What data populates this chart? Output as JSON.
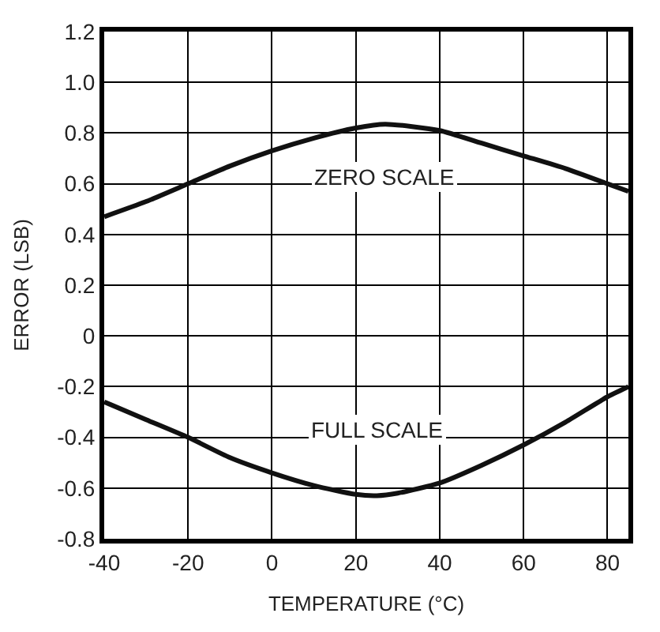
{
  "chart_data": {
    "type": "line",
    "xlabel": "TEMPERATURE (°C)",
    "ylabel": "ERROR (LSB)",
    "xlim": [
      -40,
      85
    ],
    "xticks": [
      -40,
      -20,
      0,
      20,
      40,
      60,
      80
    ],
    "ylim": [
      -0.8,
      1.2
    ],
    "yticks": [
      {
        "value": -0.8,
        "label": "-0.8"
      },
      {
        "value": -0.6,
        "label": "-0.6"
      },
      {
        "value": -0.4,
        "label": "-0.4"
      },
      {
        "value": -0.2,
        "label": "-0.2"
      },
      0,
      {
        "value": 0.2,
        "label": "0.2"
      },
      {
        "value": 0.4,
        "label": "0.4"
      },
      {
        "value": 0.6,
        "label": "0.6"
      },
      {
        "value": 0.8,
        "label": "0.8"
      },
      {
        "value": 1.0,
        "label": "1.0"
      },
      {
        "value": 1.2,
        "label": "1.2"
      }
    ],
    "grid": true,
    "marker": "none",
    "line_style": "solid",
    "series": [
      {
        "color": "#111111",
        "x": [
          -40,
          -30,
          -20,
          -10,
          0,
          10,
          20,
          27,
          40,
          50,
          60,
          70,
          80,
          85
        ],
        "values": [
          0.47,
          0.53,
          0.6,
          0.67,
          0.73,
          0.78,
          0.82,
          0.835,
          0.81,
          0.76,
          0.71,
          0.66,
          0.6,
          0.57
        ]
      },
      {
        "color": "#111111",
        "x": [
          -40,
          -30,
          -20,
          -10,
          0,
          10,
          20,
          25,
          30,
          40,
          50,
          60,
          70,
          80,
          85
        ],
        "values": [
          -0.26,
          -0.33,
          -0.4,
          -0.48,
          -0.54,
          -0.59,
          -0.625,
          -0.63,
          -0.62,
          -0.58,
          -0.51,
          -0.43,
          -0.34,
          -0.24,
          -0.2
        ]
      }
    ],
    "annotations": [
      "ZERO SCALE",
      "FULL SCALE"
    ]
  }
}
